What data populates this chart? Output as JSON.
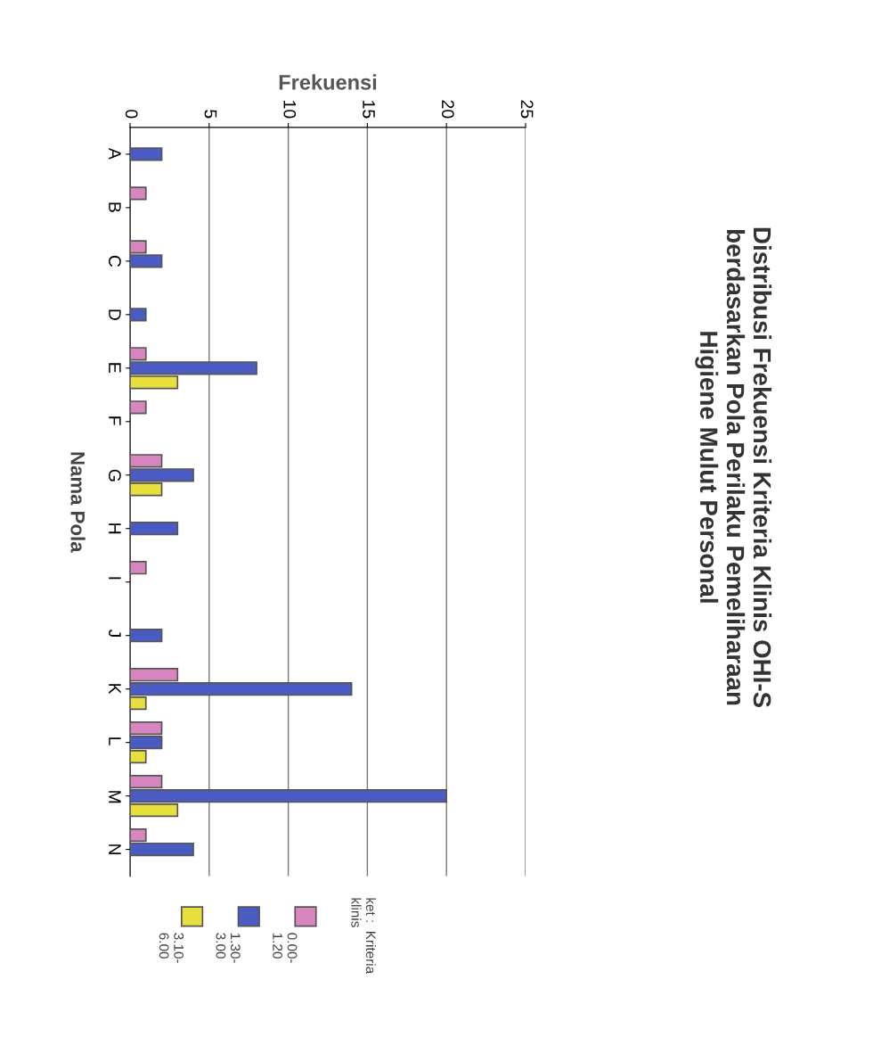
{
  "chart_data": {
    "type": "bar",
    "orientation": "horizontal",
    "title": "Distribusi Frekuensi Kriteria Klinis OHI-S\nberdasarkan Pola Perilaku Pemeliharaan\nHigiene Mulut Personal",
    "xlabel": "Frekuensi",
    "ylabel": "Nama Pola",
    "legend_title": "ket :  Kriteria\nklinis",
    "categories": [
      "A",
      "B",
      "C",
      "D",
      "E",
      "F",
      "G",
      "H",
      "I",
      "J",
      "K",
      "L",
      "M",
      "N"
    ],
    "series": [
      {
        "name": "0.00-\n1.20",
        "color": "#d886c0",
        "values": [
          null,
          1,
          1,
          null,
          1,
          1,
          2,
          null,
          1,
          null,
          3,
          2,
          2,
          1
        ]
      },
      {
        "name": "1.30-\n3.00",
        "color": "#4a5cc4",
        "values": [
          2,
          null,
          2,
          1,
          8,
          null,
          4,
          3,
          null,
          2,
          14,
          2,
          20,
          4
        ]
      },
      {
        "name": "3.10-\n6.00",
        "color": "#e6df3c",
        "values": [
          null,
          null,
          null,
          null,
          3,
          null,
          2,
          null,
          null,
          null,
          1,
          1,
          3,
          null
        ]
      }
    ],
    "xlim": [
      0,
      25
    ],
    "xticks": [
      0,
      5,
      10,
      15,
      20,
      25
    ],
    "grid": "x",
    "legend": "bottom"
  }
}
